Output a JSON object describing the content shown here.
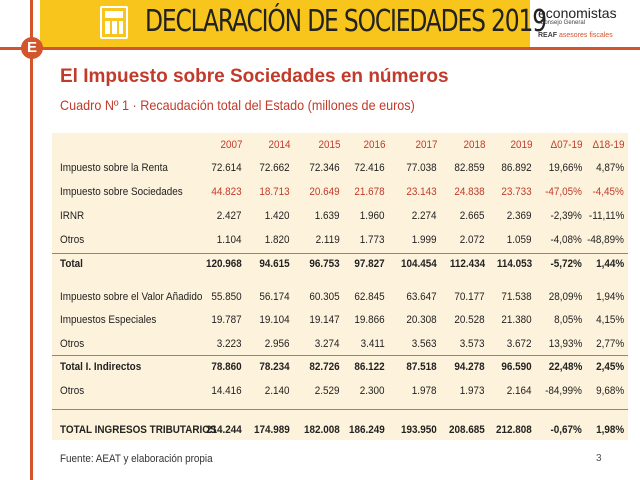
{
  "header": {
    "title": "DECLARACIÓN DE SOCIEDADES 2019",
    "logo_main": "economistas",
    "logo_sub": "Consejo General",
    "logo_reaf": "REAF",
    "logo_reaf_sub": "asesores fiscales",
    "badge": "E"
  },
  "page_title": "El Impuesto sobre Sociedades en números",
  "subtitle": "Cuadro Nº 1 · Recaudación total del Estado (millones de euros)",
  "table": {
    "columns": [
      "2007",
      "2014",
      "2015",
      "2016",
      "2017",
      "2018",
      "2019",
      "Δ07-19",
      "Δ18-19"
    ],
    "rows": [
      {
        "label": "Impuesto sobre la Renta",
        "values": [
          "72.614",
          "72.662",
          "72.346",
          "72.416",
          "77.038",
          "82.859",
          "86.892",
          "19,66%",
          "4,87%"
        ]
      },
      {
        "label": "Impuesto sobre Sociedades",
        "values": [
          "44.823",
          "18.713",
          "20.649",
          "21.678",
          "23.143",
          "24.838",
          "23.733",
          "-47,05%",
          "-4,45%"
        ]
      },
      {
        "label": "IRNR",
        "values": [
          "2.427",
          "1.420",
          "1.639",
          "1.960",
          "2.274",
          "2.665",
          "2.369",
          "-2,39%",
          "-11,11%"
        ]
      },
      {
        "label": "Otros",
        "values": [
          "1.104",
          "1.820",
          "2.119",
          "1.773",
          "1.999",
          "2.072",
          "1.059",
          "-4,08%",
          "-48,89%"
        ]
      },
      {
        "label": "Total",
        "values": [
          "120.968",
          "94.615",
          "96.753",
          "97.827",
          "104.454",
          "112.434",
          "114.053",
          "-5,72%",
          "1,44%"
        ]
      },
      {
        "label": "Impuesto sobre el Valor Añadido",
        "values": [
          "55.850",
          "56.174",
          "60.305",
          "62.845",
          "63.647",
          "70.177",
          "71.538",
          "28,09%",
          "1,94%"
        ]
      },
      {
        "label": "Impuestos Especiales",
        "values": [
          "19.787",
          "19.104",
          "19.147",
          "19.866",
          "20.308",
          "20.528",
          "21.380",
          "8,05%",
          "4,15%"
        ]
      },
      {
        "label": "Otros",
        "values": [
          "3.223",
          "2.956",
          "3.274",
          "3.411",
          "3.563",
          "3.573",
          "3.672",
          "13,93%",
          "2,77%"
        ]
      },
      {
        "label": "Total I. Indirectos",
        "values": [
          "78.860",
          "78.234",
          "82.726",
          "86.122",
          "87.518",
          "94.278",
          "96.590",
          "22,48%",
          "2,45%"
        ]
      },
      {
        "label": "Otros",
        "values": [
          "14.416",
          "2.140",
          "2.529",
          "2.300",
          "1.978",
          "1.973",
          "2.164",
          "-84,99%",
          "9,68%"
        ]
      },
      {
        "label": "TOTAL INGRESOS TRIBUTARIOS",
        "values": [
          "214.244",
          "174.989",
          "182.008",
          "186.249",
          "193.950",
          "208.685",
          "212.808",
          "-0,67%",
          "1,98%"
        ]
      }
    ]
  },
  "footer": {
    "source": "Fuente: AEAT y elaboración propia",
    "page": "3"
  },
  "colors": {
    "accent": "#c23a2a",
    "banner": "#f8c51c",
    "line": "#d3552c",
    "table_bg": "#fdf3dc"
  }
}
